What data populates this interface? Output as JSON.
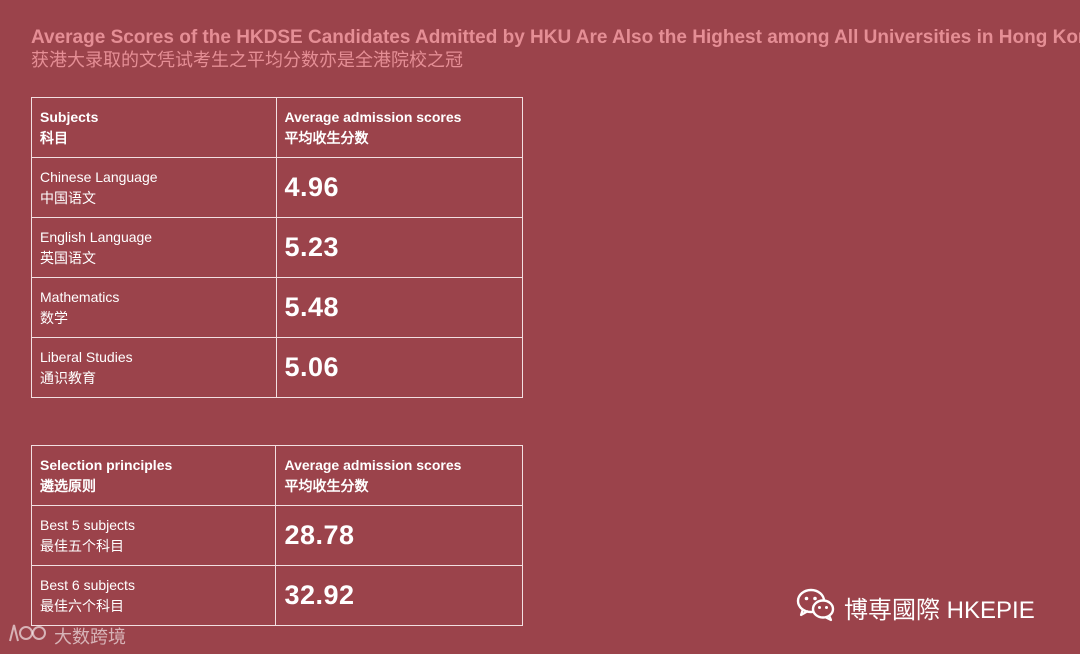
{
  "title": "Average Scores of the HKDSE Candidates Admitted by HKU Are Also the Highest among All Universities in Hong Kong",
  "subtitle": "获港大录取的文凭试考生之平均分数亦是全港院校之冠",
  "table1": {
    "header": {
      "col1_en": "Subjects",
      "col1_zh": "科目",
      "col2_en": "Average admission scores",
      "col2_zh": "平均收生分数"
    },
    "rows": [
      {
        "en": "Chinese Language",
        "zh": "中国语文",
        "value": "4.96"
      },
      {
        "en": "English Language",
        "zh": "英国语文",
        "value": "5.23"
      },
      {
        "en": "Mathematics",
        "zh": "数学",
        "value": "5.48"
      },
      {
        "en": "Liberal Studies",
        "zh": "通识教育",
        "value": "5.06"
      }
    ]
  },
  "table2": {
    "header": {
      "col1_en": "Selection principles",
      "col1_zh": "遴选原则",
      "col2_en": "Average admission scores",
      "col2_zh": "平均收生分数"
    },
    "rows": [
      {
        "en": "Best 5 subjects",
        "zh": "最佳五个科目",
        "value": "28.78"
      },
      {
        "en": "Best 6 subjects",
        "zh": "最佳六个科目",
        "value": "32.92"
      }
    ]
  },
  "branding": {
    "icon": "wechat-icon",
    "text": "博専國際 HKEPIE"
  },
  "watermark": {
    "icon": "dashuju-logo-icon",
    "text": "大数跨境"
  },
  "colors": {
    "background": "#9b434b",
    "title": "#e58e95",
    "border": "#f3dfe1"
  }
}
